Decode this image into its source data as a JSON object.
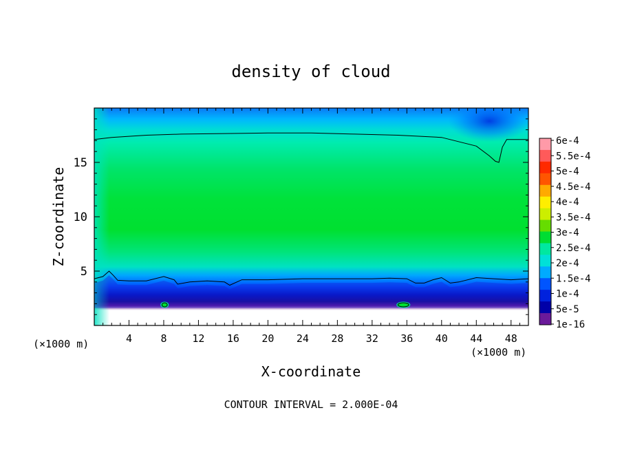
{
  "chart_data": {
    "type": "heatmap",
    "title": "density of cloud",
    "xlabel": "X-coordinate",
    "ylabel": "Z-coordinate",
    "x_unit": "(×1000 m)",
    "z_unit": "(×1000 m)",
    "xlim": [
      0,
      50
    ],
    "ylim": [
      0,
      20
    ],
    "x_ticks": [
      4,
      8,
      12,
      16,
      20,
      24,
      28,
      32,
      36,
      40,
      44,
      48
    ],
    "y_ticks": [
      5,
      10,
      15
    ],
    "footer": "CONTOUR INTERVAL = 2.000E-04",
    "colorbar": {
      "labels": [
        "6e-4",
        "5.5e-4",
        "5e-4",
        "4.5e-4",
        "4e-4",
        "3.5e-4",
        "3e-4",
        "2.5e-4",
        "2e-4",
        "1.5e-4",
        "1e-4",
        "5e-5",
        "1e-16"
      ],
      "colors": [
        "#ff9aa8",
        "#ff5a5a",
        "#ff2a00",
        "#ff5500",
        "#ffaa00",
        "#ffee00",
        "#ccee00",
        "#66dd00",
        "#00dd33",
        "#00e8a0",
        "#00e0d8",
        "#00aaff",
        "#0055ff",
        "#0022dd",
        "#0000a8",
        "#6a1a9a"
      ]
    },
    "contour_level": "2.000E-04",
    "contours": [
      {
        "x": [
          0.0,
          2.0,
          6.0,
          10.0,
          15.0,
          20.0,
          25.0,
          30.0,
          35.0,
          40.0,
          44.0,
          45.5,
          46.2,
          46.6,
          47.0,
          47.5,
          50.0
        ],
        "y": [
          17.1,
          17.3,
          17.5,
          17.6,
          17.65,
          17.7,
          17.7,
          17.6,
          17.5,
          17.3,
          16.5,
          15.6,
          15.1,
          15.0,
          16.4,
          17.1,
          17.1
        ]
      },
      {
        "x": [
          0.0,
          1.0,
          1.7,
          2.2,
          2.7,
          4.0,
          6.0,
          8.0,
          9.2,
          9.6,
          11.0,
          13.0,
          15.0,
          15.6,
          17.0,
          20.0,
          24.0,
          28.0,
          32.0,
          34.0,
          36.0,
          37.0,
          38.0,
          39.0,
          40.0,
          41.0,
          42.0,
          44.0,
          46.0,
          48.0,
          50.0
        ],
        "y": [
          4.3,
          4.5,
          5.0,
          4.6,
          4.15,
          4.1,
          4.1,
          4.5,
          4.2,
          3.8,
          4.0,
          4.1,
          4.0,
          3.7,
          4.2,
          4.2,
          4.3,
          4.3,
          4.3,
          4.35,
          4.3,
          3.9,
          3.9,
          4.2,
          4.4,
          3.9,
          4.0,
          4.4,
          4.3,
          4.2,
          4.3
        ]
      }
    ],
    "blobs": [
      {
        "x": 8.1,
        "y": 1.9
      },
      {
        "x": 35.6,
        "y": 1.9
      }
    ]
  }
}
